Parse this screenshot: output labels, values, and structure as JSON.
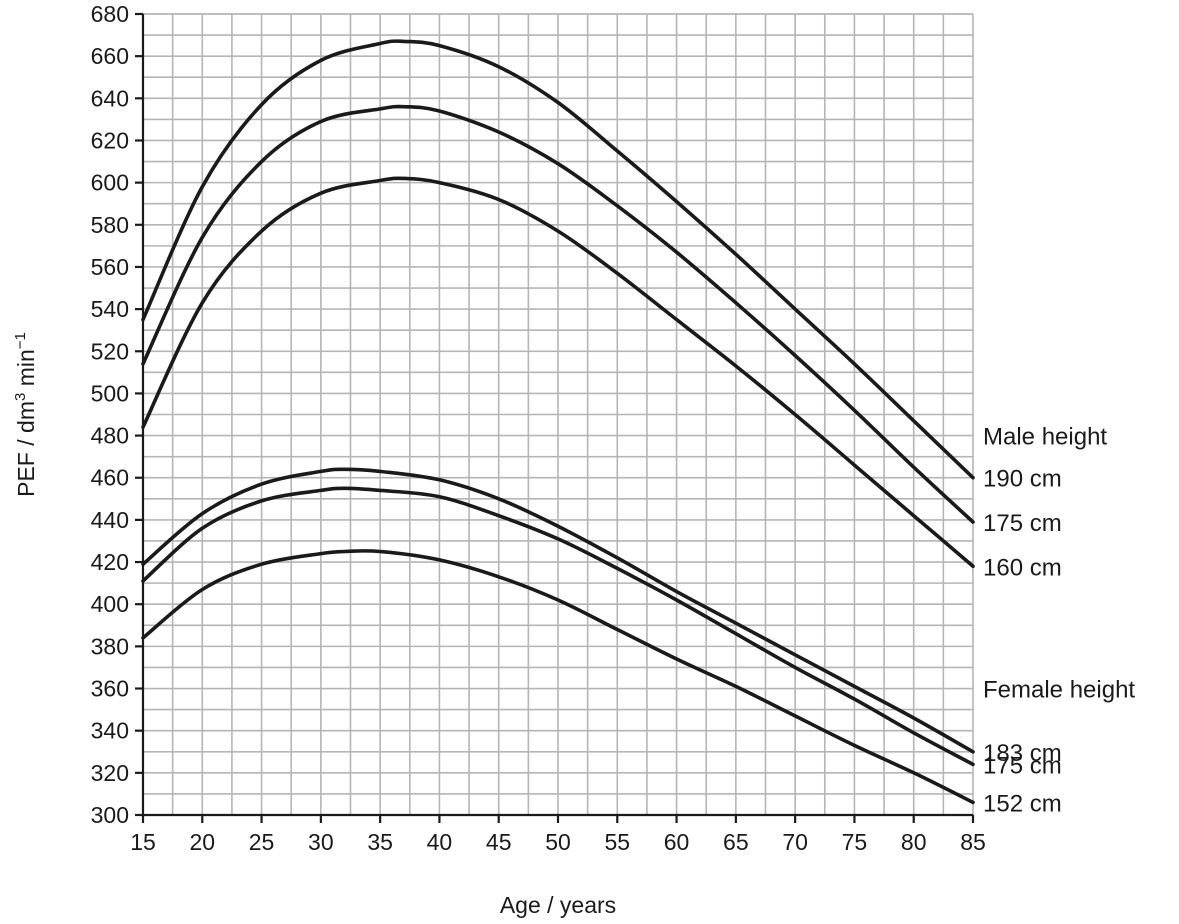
{
  "chart_data": {
    "type": "line",
    "title": "",
    "xlabel": "Age / years",
    "ylabel": "PEF / dm",
    "ylabel_sup1": "3",
    "ylabel_mid": " min",
    "ylabel_sup2": "−1",
    "xlim": [
      15,
      85
    ],
    "ylim": [
      300,
      680
    ],
    "x_ticks": [
      "15",
      "20",
      "25",
      "30",
      "35",
      "40",
      "45",
      "50",
      "55",
      "60",
      "65",
      "70",
      "75",
      "80",
      "85"
    ],
    "y_ticks": [
      "300",
      "320",
      "340",
      "360",
      "380",
      "400",
      "420",
      "440",
      "460",
      "480",
      "500",
      "520",
      "540",
      "560",
      "580",
      "600",
      "620",
      "640",
      "660",
      "680"
    ],
    "grid": true,
    "legend_placement": "right",
    "group_labels": {
      "male": "Male height",
      "female": "Female height"
    },
    "series": [
      {
        "name": "190 cm",
        "group": "male",
        "x": [
          15,
          20,
          25,
          30,
          35,
          37,
          40,
          45,
          50,
          55,
          60,
          65,
          70,
          75,
          80,
          85
        ],
        "y": [
          535,
          598,
          637,
          658,
          666,
          667,
          665,
          655,
          638,
          615,
          591,
          566,
          540,
          514,
          487,
          460
        ]
      },
      {
        "name": "175 cm",
        "group": "male",
        "x": [
          15,
          20,
          25,
          30,
          35,
          37,
          40,
          45,
          50,
          55,
          60,
          65,
          70,
          75,
          80,
          85
        ],
        "y": [
          514,
          574,
          610,
          629,
          635,
          636,
          634,
          624,
          609,
          589,
          567,
          543,
          518,
          492,
          465,
          439
        ]
      },
      {
        "name": "160 cm",
        "group": "male",
        "x": [
          15,
          20,
          25,
          30,
          35,
          37,
          40,
          45,
          50,
          55,
          60,
          65,
          70,
          75,
          80,
          85
        ],
        "y": [
          484,
          543,
          577,
          595,
          601,
          602,
          600,
          592,
          577,
          557,
          535,
          513,
          490,
          466,
          442,
          418
        ]
      },
      {
        "name": "183 cm",
        "group": "female",
        "x": [
          15,
          20,
          25,
          30,
          32,
          35,
          40,
          45,
          50,
          55,
          60,
          65,
          70,
          75,
          80,
          85
        ],
        "y": [
          419,
          443,
          457,
          463,
          464,
          463,
          459,
          450,
          437,
          422,
          406,
          391,
          376,
          361,
          346,
          330
        ]
      },
      {
        "name": "175 cm",
        "group": "female",
        "x": [
          15,
          20,
          25,
          30,
          32,
          35,
          40,
          45,
          50,
          55,
          60,
          65,
          70,
          75,
          80,
          85
        ],
        "y": [
          411,
          436,
          449,
          454,
          455,
          454,
          451,
          442,
          431,
          417,
          402,
          386,
          370,
          355,
          339,
          324
        ]
      },
      {
        "name": "152 cm",
        "group": "female",
        "x": [
          15,
          20,
          25,
          30,
          32,
          35,
          40,
          45,
          50,
          55,
          60,
          65,
          70,
          75,
          80,
          85
        ],
        "y": [
          384,
          407,
          419,
          424,
          425,
          425,
          421,
          413,
          402,
          388,
          374,
          361,
          347,
          333,
          320,
          306
        ]
      }
    ]
  }
}
